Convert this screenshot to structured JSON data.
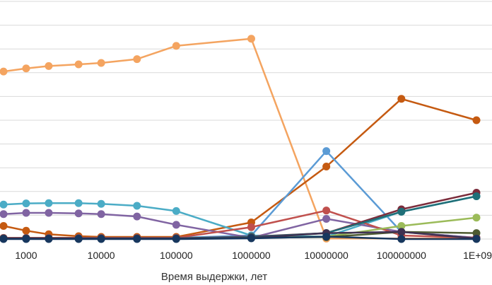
{
  "chart_data": {
    "type": "line",
    "title": "",
    "xlabel": "Время выдержки, лет",
    "ylabel": "",
    "x_scale": "log",
    "x": [
      500,
      1000,
      2000,
      5000,
      10000,
      30000,
      100000,
      1000000,
      10000000,
      100000000,
      1000000000
    ],
    "x_tick_labels": [
      {
        "value": 1000,
        "label": "1000"
      },
      {
        "value": 10000,
        "label": "10000"
      },
      {
        "value": 100000,
        "label": "100000"
      },
      {
        "value": 1000000,
        "label": "1000000"
      },
      {
        "value": 10000000,
        "label": "10000000"
      },
      {
        "value": 100000000,
        "label": "100000000"
      },
      {
        "value": 1000000000,
        "label": "1E+09"
      }
    ],
    "xlim": [
      500,
      1000000000
    ],
    "ylim": [
      0,
      10
    ],
    "y_gridlines": [
      0,
      1,
      2,
      3,
      4,
      5,
      6,
      7,
      8,
      9,
      10
    ],
    "y_tick_labels": false,
    "grid": true,
    "legend": "none",
    "series": [
      {
        "color": "#F4A460",
        "values": [
          7.05,
          7.18,
          7.28,
          7.35,
          7.41,
          7.57,
          8.13,
          8.43,
          0.02,
          0.02,
          0.02
        ]
      },
      {
        "color": "#C55A11",
        "values": [
          0.55,
          0.35,
          0.2,
          0.12,
          0.09,
          0.09,
          0.09,
          0.7,
          3.05,
          5.9,
          5.0
        ]
      },
      {
        "color": "#5B9BD5",
        "values": [
          0.02,
          0.02,
          0.02,
          0.02,
          0.02,
          0.02,
          0.05,
          0.15,
          3.7,
          0.3,
          0.05
        ]
      },
      {
        "color": "#4BACC6",
        "values": [
          1.45,
          1.5,
          1.51,
          1.51,
          1.48,
          1.4,
          1.18,
          0.15,
          0.1,
          1.15,
          1.8
        ]
      },
      {
        "color": "#8064A2",
        "values": [
          1.05,
          1.1,
          1.1,
          1.08,
          1.05,
          0.95,
          0.6,
          0.05,
          0.85,
          0.3,
          0.05
        ]
      },
      {
        "color": "#C0504D",
        "values": [
          0.05,
          0.05,
          0.05,
          0.05,
          0.05,
          0.05,
          0.05,
          0.5,
          1.2,
          0.15,
          0.05
        ]
      },
      {
        "color": "#9BBB59",
        "values": [
          0.02,
          0.02,
          0.02,
          0.02,
          0.02,
          0.02,
          0.02,
          0.05,
          0.1,
          0.55,
          0.9
        ]
      },
      {
        "color": "#7B2C3B",
        "values": [
          0.03,
          0.03,
          0.03,
          0.03,
          0.03,
          0.03,
          0.03,
          0.1,
          0.25,
          1.25,
          1.95
        ]
      },
      {
        "color": "#1F6F78",
        "values": [
          0.03,
          0.03,
          0.03,
          0.03,
          0.03,
          0.03,
          0.03,
          0.08,
          0.25,
          1.15,
          1.8
        ]
      },
      {
        "color": "#4E5B31",
        "values": [
          0.02,
          0.02,
          0.02,
          0.02,
          0.02,
          0.02,
          0.02,
          0.05,
          0.08,
          0.3,
          0.25
        ]
      },
      {
        "color": "#3F3151",
        "values": [
          0.02,
          0.02,
          0.02,
          0.02,
          0.02,
          0.02,
          0.02,
          0.05,
          0.25,
          0.3,
          0.02
        ]
      },
      {
        "color": "#17375E",
        "values": [
          0.0,
          0.0,
          0.0,
          0.0,
          0.0,
          0.0,
          0.0,
          0.03,
          0.1,
          0.0,
          0.0
        ]
      }
    ]
  }
}
